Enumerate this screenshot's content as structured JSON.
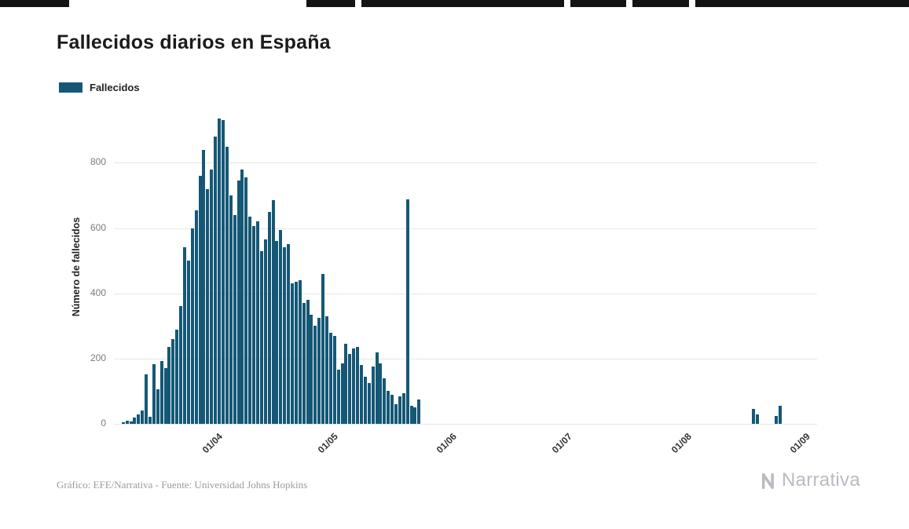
{
  "page": {
    "title": "Fallecidos diarios en España",
    "legend": {
      "label": "Fallecidos"
    },
    "footer": "Gráfico: EFE/Narrativa - Fuente: Universidad Johns Hopkins",
    "brand": "Narrativa"
  },
  "colors": {
    "bar": "#155876",
    "grid": "#e7e7e7",
    "title_text": "#1b1b1b",
    "tick_text": "#7a7a7a",
    "xtick_text": "#333333",
    "footer_text": "#9b9b9b",
    "brand_text": "#b7bcc2",
    "top_strip": "#141414"
  },
  "chart_data": {
    "type": "bar",
    "title": "Fallecidos diarios en España",
    "xlabel": "",
    "ylabel": "Número de fallecidos",
    "legend": [
      "Fallecidos"
    ],
    "legend_position": "top-left",
    "grid": true,
    "ylim": [
      0,
      950
    ],
    "yticks": [
      0,
      200,
      400,
      600,
      800
    ],
    "x_domain": [
      "2020-03-06",
      "2020-09-05"
    ],
    "xticks": [
      {
        "date": "2020-04-01",
        "label": "01/04"
      },
      {
        "date": "2020-05-01",
        "label": "01/05"
      },
      {
        "date": "2020-06-01",
        "label": "01/06"
      },
      {
        "date": "2020-07-01",
        "label": "01/07"
      },
      {
        "date": "2020-08-01",
        "label": "01/08"
      },
      {
        "date": "2020-09-01",
        "label": "01/09"
      }
    ],
    "series": [
      {
        "name": "Fallecidos",
        "points": [
          [
            "2020-03-08",
            5
          ],
          [
            "2020-03-09",
            10
          ],
          [
            "2020-03-10",
            7
          ],
          [
            "2020-03-11",
            19
          ],
          [
            "2020-03-12",
            29
          ],
          [
            "2020-03-13",
            40
          ],
          [
            "2020-03-14",
            151
          ],
          [
            "2020-03-15",
            21
          ],
          [
            "2020-03-16",
            182
          ],
          [
            "2020-03-17",
            105
          ],
          [
            "2020-03-18",
            193
          ],
          [
            "2020-03-19",
            170
          ],
          [
            "2020-03-20",
            235
          ],
          [
            "2020-03-21",
            260
          ],
          [
            "2020-03-22",
            288
          ],
          [
            "2020-03-23",
            360
          ],
          [
            "2020-03-24",
            540
          ],
          [
            "2020-03-25",
            500
          ],
          [
            "2020-03-26",
            600
          ],
          [
            "2020-03-27",
            655
          ],
          [
            "2020-03-28",
            760
          ],
          [
            "2020-03-29",
            840
          ],
          [
            "2020-03-30",
            720
          ],
          [
            "2020-03-31",
            780
          ],
          [
            "2020-04-01",
            880
          ],
          [
            "2020-04-02",
            935
          ],
          [
            "2020-04-03",
            930
          ],
          [
            "2020-04-04",
            850
          ],
          [
            "2020-04-05",
            700
          ],
          [
            "2020-04-06",
            640
          ],
          [
            "2020-04-07",
            745
          ],
          [
            "2020-04-08",
            780
          ],
          [
            "2020-04-09",
            755
          ],
          [
            "2020-04-10",
            635
          ],
          [
            "2020-04-11",
            605
          ],
          [
            "2020-04-12",
            620
          ],
          [
            "2020-04-13",
            530
          ],
          [
            "2020-04-14",
            565
          ],
          [
            "2020-04-15",
            650
          ],
          [
            "2020-04-16",
            685
          ],
          [
            "2020-04-17",
            560
          ],
          [
            "2020-04-18",
            595
          ],
          [
            "2020-04-19",
            540
          ],
          [
            "2020-04-20",
            550
          ],
          [
            "2020-04-21",
            430
          ],
          [
            "2020-04-22",
            435
          ],
          [
            "2020-04-23",
            440
          ],
          [
            "2020-04-24",
            370
          ],
          [
            "2020-04-25",
            380
          ],
          [
            "2020-04-26",
            335
          ],
          [
            "2020-04-27",
            300
          ],
          [
            "2020-04-28",
            325
          ],
          [
            "2020-04-29",
            460
          ],
          [
            "2020-04-30",
            330
          ],
          [
            "2020-05-01",
            280
          ],
          [
            "2020-05-02",
            270
          ],
          [
            "2020-05-03",
            165
          ],
          [
            "2020-05-04",
            185
          ],
          [
            "2020-05-05",
            245
          ],
          [
            "2020-05-06",
            215
          ],
          [
            "2020-05-07",
            230
          ],
          [
            "2020-05-08",
            235
          ],
          [
            "2020-05-09",
            180
          ],
          [
            "2020-05-10",
            145
          ],
          [
            "2020-05-11",
            125
          ],
          [
            "2020-05-12",
            175
          ],
          [
            "2020-05-13",
            220
          ],
          [
            "2020-05-14",
            185
          ],
          [
            "2020-05-15",
            140
          ],
          [
            "2020-05-16",
            100
          ],
          [
            "2020-05-17",
            90
          ],
          [
            "2020-05-18",
            60
          ],
          [
            "2020-05-19",
            85
          ],
          [
            "2020-05-20",
            95
          ],
          [
            "2020-05-21",
            688
          ],
          [
            "2020-05-22",
            55
          ],
          [
            "2020-05-23",
            50
          ],
          [
            "2020-05-24",
            75
          ],
          [
            "2020-08-19",
            45
          ],
          [
            "2020-08-20",
            30
          ],
          [
            "2020-08-25",
            25
          ],
          [
            "2020-08-26",
            55
          ]
        ]
      }
    ]
  },
  "decor": {
    "top_strip_segments": [
      [
        0,
        88
      ],
      [
        390,
        62
      ],
      [
        460,
        258
      ],
      [
        726,
        71
      ],
      [
        805,
        72
      ],
      [
        885,
        272
      ]
    ]
  }
}
